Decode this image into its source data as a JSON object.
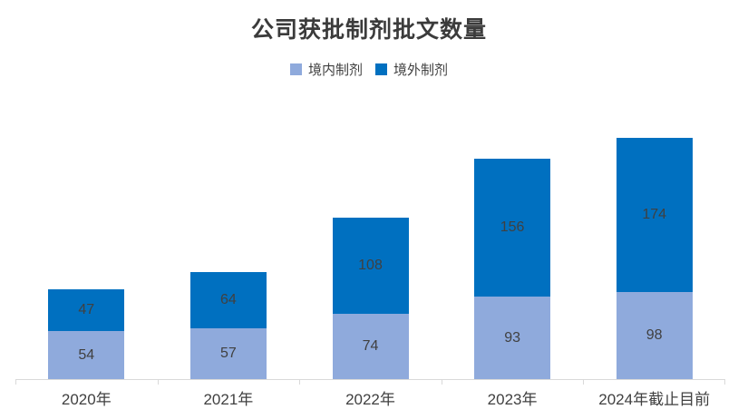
{
  "chart_data": {
    "type": "bar",
    "stacked": true,
    "title": "公司获批制剂批文数量",
    "categories": [
      "2020年",
      "2021年",
      "2022年",
      "2023年",
      "2024年截止目前"
    ],
    "series": [
      {
        "name": "境内制剂",
        "color": "#8FAADC",
        "values": [
          54,
          57,
          74,
          93,
          98
        ]
      },
      {
        "name": "境外制剂",
        "color": "#0070C0",
        "values": [
          47,
          64,
          108,
          156,
          174
        ]
      }
    ],
    "legend_position": "top",
    "grid": false,
    "data_labels": true,
    "label_color": "#404040",
    "axis_line_color": "#d9d9d9",
    "ylim": [
      0,
      305
    ]
  }
}
